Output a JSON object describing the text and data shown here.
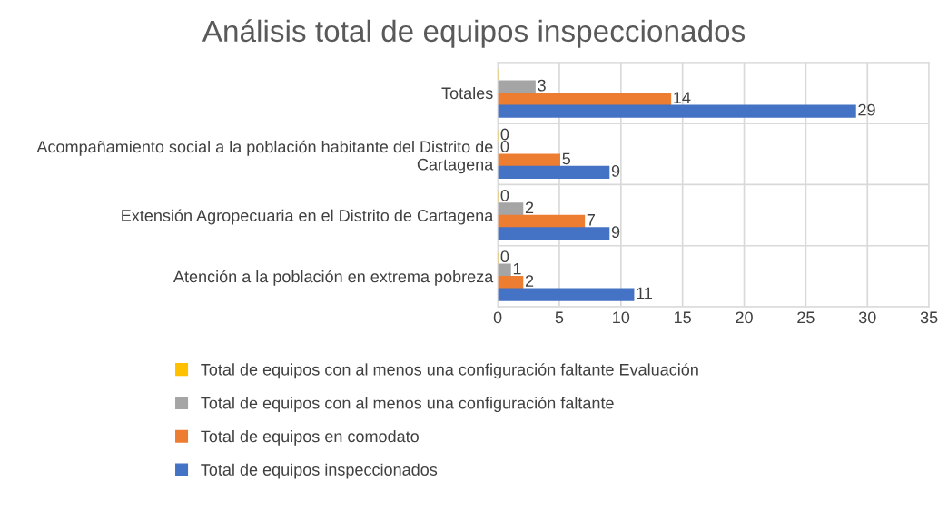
{
  "chart_data": {
    "type": "bar",
    "orientation": "horizontal",
    "title": "Análisis total de equipos inspeccionados",
    "categories": [
      "Totales",
      "Acompañamiento social a la población habitante del Distrito de Cartagena",
      "Extensión Agropecuaria en el Distrito de Cartagena",
      "Atención a la población en extrema pobreza"
    ],
    "series": [
      {
        "name": "Total de equipos con al menos una configuración faltante Evaluación",
        "color": "#ffc000",
        "values": [
          0,
          0,
          0,
          0
        ],
        "value_labels": [
          null,
          "0",
          "0",
          "0"
        ]
      },
      {
        "name": "Total de equipos con al menos una configuración faltante",
        "color": "#a5a5a5",
        "values": [
          3,
          0,
          2,
          1
        ],
        "value_labels": [
          "3",
          "0",
          "2",
          "1"
        ]
      },
      {
        "name": "Total de equipos en comodato",
        "color": "#ed7d31",
        "values": [
          14,
          5,
          7,
          2
        ],
        "value_labels": [
          "14",
          "5",
          "7",
          "2"
        ]
      },
      {
        "name": "Total de equipos inspeccionados",
        "color": "#4472c4",
        "values": [
          29,
          9,
          9,
          11
        ],
        "value_labels": [
          "29",
          "9",
          "9",
          "11"
        ]
      }
    ],
    "xlim": [
      0,
      35
    ],
    "xticks": [
      0,
      5,
      10,
      15,
      20,
      25,
      30,
      35
    ],
    "grid": true,
    "legend": "bottom"
  }
}
